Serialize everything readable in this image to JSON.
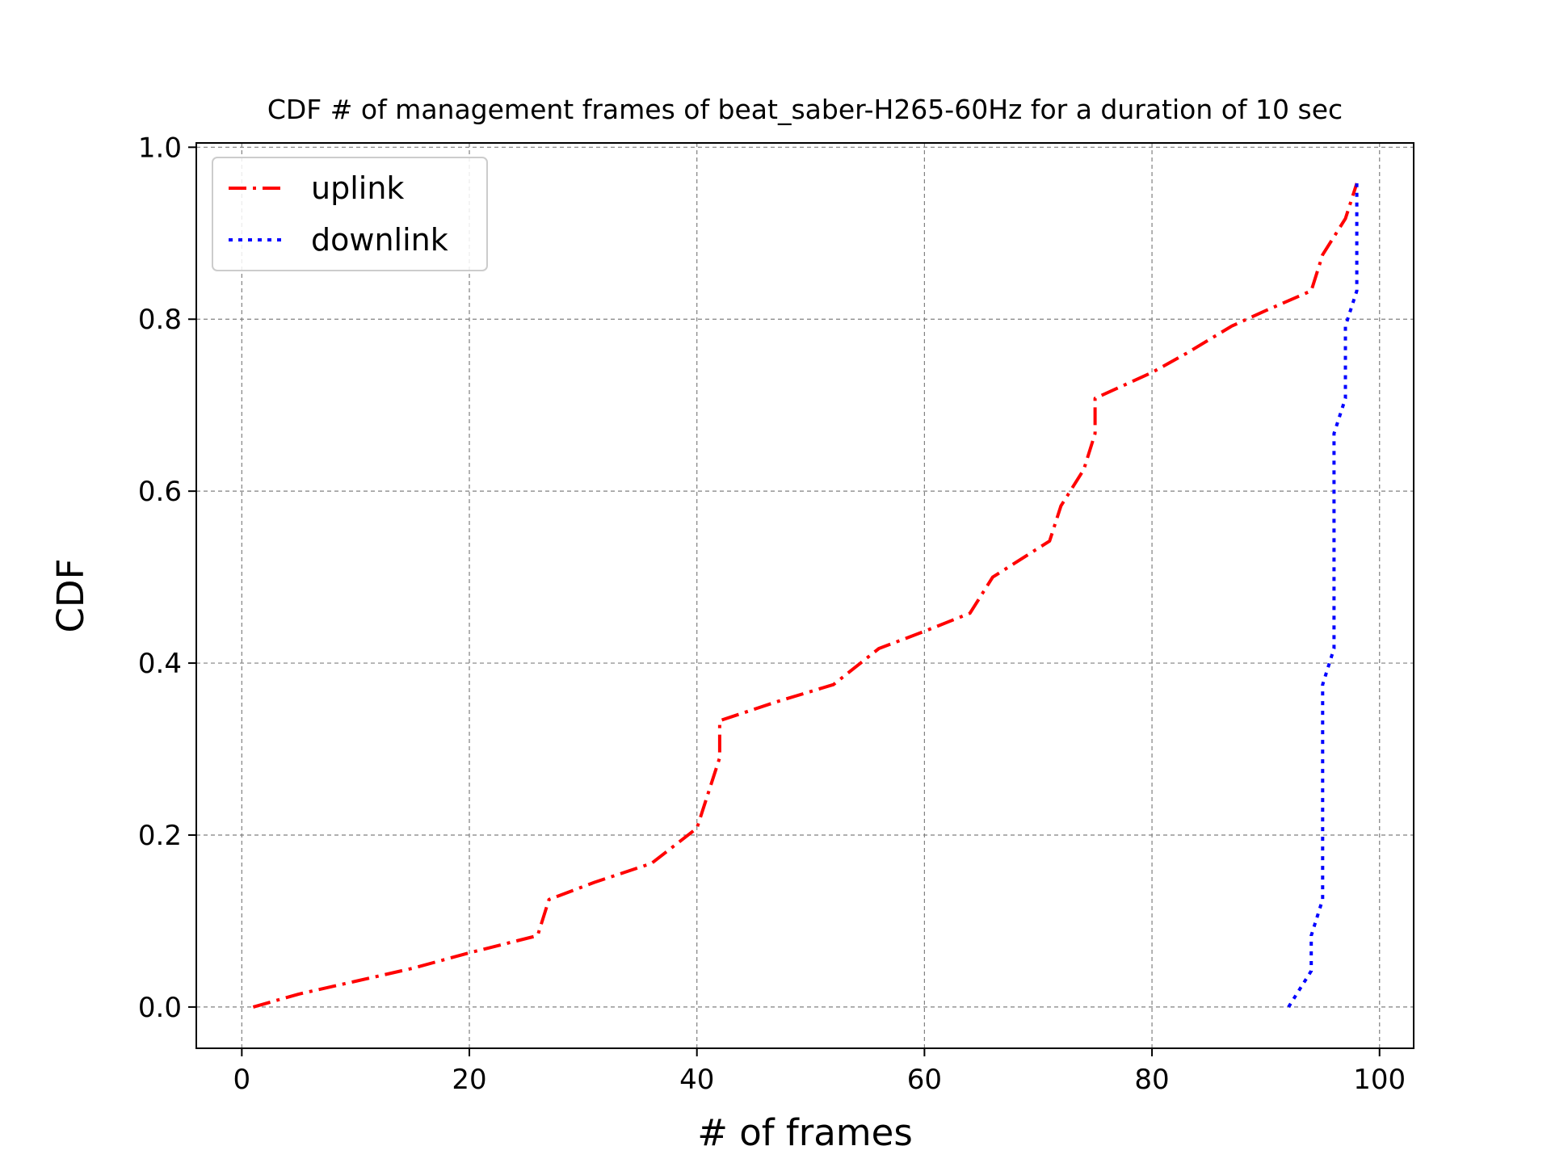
{
  "chart_data": {
    "type": "line",
    "title": "CDF # of management frames of beat_saber-H265-60Hz for a duration of 10 sec",
    "xlabel": "# of frames",
    "ylabel": "CDF",
    "xlim": [
      -4,
      103
    ],
    "ylim": [
      -0.048,
      1.005
    ],
    "xticks": [
      0,
      20,
      40,
      60,
      80,
      100
    ],
    "xtick_labels": [
      "0",
      "20",
      "40",
      "60",
      "80",
      "100"
    ],
    "yticks": [
      0.0,
      0.2,
      0.4,
      0.6,
      0.8,
      1.0
    ],
    "ytick_labels": [
      "0.0",
      "0.2",
      "0.4",
      "0.6",
      "0.8",
      "1.0"
    ],
    "grid": true,
    "legend_position": "top-left",
    "series": [
      {
        "name": "uplink",
        "color": "#ff0000",
        "style": "dashdot",
        "x": [
          1,
          5,
          10,
          15,
          20,
          26,
          27,
          31,
          36,
          40,
          42,
          42,
          47,
          52,
          56,
          60,
          64,
          66,
          71,
          72,
          74,
          75,
          75,
          80,
          83,
          87,
          90,
          94,
          95,
          97,
          98
        ],
        "y": [
          0.0,
          0.015,
          0.03,
          0.045,
          0.063,
          0.083,
          0.125,
          0.145,
          0.167,
          0.208,
          0.29,
          0.333,
          0.355,
          0.375,
          0.417,
          0.437,
          0.458,
          0.5,
          0.542,
          0.583,
          0.625,
          0.667,
          0.708,
          0.738,
          0.76,
          0.792,
          0.81,
          0.833,
          0.875,
          0.917,
          0.958
        ]
      },
      {
        "name": "downlink",
        "color": "#0000ff",
        "style": "dotted",
        "x": [
          92,
          94,
          94,
          95,
          95,
          95,
          96,
          96,
          96,
          97,
          97,
          98,
          98
        ],
        "y": [
          0.0,
          0.042,
          0.083,
          0.125,
          0.333,
          0.375,
          0.417,
          0.625,
          0.667,
          0.708,
          0.792,
          0.833,
          0.958
        ]
      }
    ]
  }
}
